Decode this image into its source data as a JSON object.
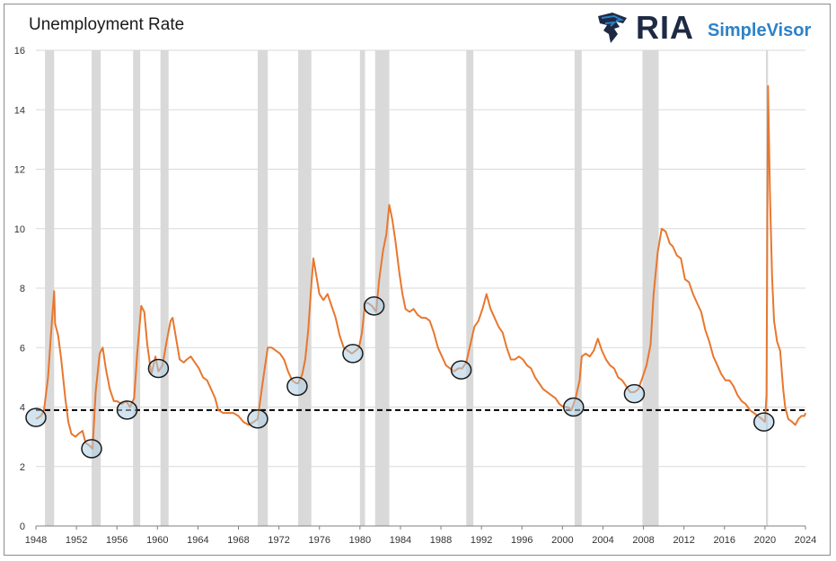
{
  "header": {
    "title": "Unemployment Rate"
  },
  "logo": {
    "mark": "RIA",
    "product": "SimpleVisor",
    "icon": "eagle-icon",
    "colors": {
      "mark": "#1e2a44",
      "product": "#2d82c8"
    }
  },
  "chart_data": {
    "type": "line",
    "title": "Unemployment Rate",
    "xlabel": "",
    "ylabel": "",
    "xlim": [
      1948,
      2024
    ],
    "ylim": [
      0,
      16
    ],
    "yticks": [
      0,
      2,
      4,
      6,
      8,
      10,
      12,
      14,
      16
    ],
    "xticks": [
      "1948",
      "1952",
      "1956",
      "1960",
      "1964",
      "1968",
      "1972",
      "1976",
      "1980",
      "1984",
      "1988",
      "1992",
      "1996",
      "2000",
      "2004",
      "2008",
      "2012",
      "2016",
      "2020",
      "2024"
    ],
    "grid": "horizontal",
    "line_color": "#e8772e",
    "recession_color": "#d9d9d9",
    "reference_line": {
      "y": 3.9,
      "style": "dashed",
      "color": "#000000"
    },
    "recessions": [
      [
        1948.9,
        1949.8
      ],
      [
        1953.5,
        1954.4
      ],
      [
        1957.6,
        1958.3
      ],
      [
        1960.3,
        1961.1
      ],
      [
        1969.9,
        1970.9
      ],
      [
        1973.9,
        1975.2
      ],
      [
        1980.0,
        1980.5
      ],
      [
        1981.5,
        1982.9
      ],
      [
        1990.5,
        1991.2
      ],
      [
        2001.2,
        2001.9
      ],
      [
        2007.9,
        2009.5
      ],
      [
        2020.1,
        2020.3
      ]
    ],
    "series": [
      {
        "values": [
          [
            1948.0,
            3.6
          ],
          [
            1948.5,
            3.7
          ],
          [
            1948.8,
            3.9
          ],
          [
            1949.2,
            5.0
          ],
          [
            1949.5,
            6.5
          ],
          [
            1949.8,
            7.9
          ],
          [
            1949.9,
            6.8
          ],
          [
            1950.2,
            6.4
          ],
          [
            1950.5,
            5.6
          ],
          [
            1950.9,
            4.3
          ],
          [
            1951.2,
            3.5
          ],
          [
            1951.5,
            3.1
          ],
          [
            1951.9,
            3.0
          ],
          [
            1952.2,
            3.1
          ],
          [
            1952.6,
            3.2
          ],
          [
            1952.9,
            2.8
          ],
          [
            1953.3,
            2.7
          ],
          [
            1953.6,
            2.6
          ],
          [
            1953.9,
            4.5
          ],
          [
            1954.3,
            5.8
          ],
          [
            1954.6,
            6.0
          ],
          [
            1954.9,
            5.3
          ],
          [
            1955.3,
            4.6
          ],
          [
            1955.7,
            4.2
          ],
          [
            1956.0,
            4.2
          ],
          [
            1956.5,
            4.1
          ],
          [
            1956.9,
            4.2
          ],
          [
            1957.3,
            4.0
          ],
          [
            1957.7,
            4.3
          ],
          [
            1958.0,
            5.8
          ],
          [
            1958.4,
            7.4
          ],
          [
            1958.7,
            7.2
          ],
          [
            1959.0,
            6.1
          ],
          [
            1959.4,
            5.1
          ],
          [
            1959.8,
            5.7
          ],
          [
            1960.1,
            5.2
          ],
          [
            1960.5,
            5.4
          ],
          [
            1960.9,
            6.2
          ],
          [
            1961.3,
            6.9
          ],
          [
            1961.5,
            7.0
          ],
          [
            1961.9,
            6.2
          ],
          [
            1962.2,
            5.6
          ],
          [
            1962.6,
            5.5
          ],
          [
            1962.9,
            5.6
          ],
          [
            1963.3,
            5.7
          ],
          [
            1963.7,
            5.5
          ],
          [
            1964.1,
            5.3
          ],
          [
            1964.5,
            5.0
          ],
          [
            1964.9,
            4.9
          ],
          [
            1965.3,
            4.6
          ],
          [
            1965.7,
            4.3
          ],
          [
            1966.0,
            3.9
          ],
          [
            1966.5,
            3.8
          ],
          [
            1967.0,
            3.8
          ],
          [
            1967.5,
            3.8
          ],
          [
            1968.0,
            3.7
          ],
          [
            1968.5,
            3.5
          ],
          [
            1969.0,
            3.4
          ],
          [
            1969.5,
            3.5
          ],
          [
            1969.9,
            3.6
          ],
          [
            1970.3,
            4.6
          ],
          [
            1970.6,
            5.3
          ],
          [
            1970.9,
            6.0
          ],
          [
            1971.3,
            6.0
          ],
          [
            1971.7,
            5.9
          ],
          [
            1972.1,
            5.8
          ],
          [
            1972.5,
            5.6
          ],
          [
            1972.9,
            5.2
          ],
          [
            1973.3,
            4.9
          ],
          [
            1973.7,
            4.8
          ],
          [
            1973.9,
            4.8
          ],
          [
            1974.3,
            5.1
          ],
          [
            1974.6,
            5.6
          ],
          [
            1974.9,
            6.6
          ],
          [
            1975.2,
            8.1
          ],
          [
            1975.4,
            9.0
          ],
          [
            1975.7,
            8.4
          ],
          [
            1976.0,
            7.8
          ],
          [
            1976.4,
            7.6
          ],
          [
            1976.8,
            7.8
          ],
          [
            1977.2,
            7.4
          ],
          [
            1977.6,
            7.0
          ],
          [
            1978.0,
            6.4
          ],
          [
            1978.4,
            6.0
          ],
          [
            1978.8,
            5.9
          ],
          [
            1979.2,
            5.8
          ],
          [
            1979.6,
            5.9
          ],
          [
            1979.9,
            6.0
          ],
          [
            1980.2,
            6.5
          ],
          [
            1980.5,
            7.5
          ],
          [
            1980.8,
            7.5
          ],
          [
            1981.2,
            7.4
          ],
          [
            1981.6,
            7.2
          ],
          [
            1981.9,
            8.3
          ],
          [
            1982.3,
            9.3
          ],
          [
            1982.6,
            9.8
          ],
          [
            1982.9,
            10.8
          ],
          [
            1983.2,
            10.3
          ],
          [
            1983.5,
            9.6
          ],
          [
            1983.9,
            8.5
          ],
          [
            1984.2,
            7.8
          ],
          [
            1984.5,
            7.3
          ],
          [
            1984.9,
            7.2
          ],
          [
            1985.3,
            7.3
          ],
          [
            1985.7,
            7.1
          ],
          [
            1986.1,
            7.0
          ],
          [
            1986.5,
            7.0
          ],
          [
            1986.9,
            6.9
          ],
          [
            1987.3,
            6.5
          ],
          [
            1987.7,
            6.0
          ],
          [
            1988.1,
            5.7
          ],
          [
            1988.5,
            5.4
          ],
          [
            1988.9,
            5.3
          ],
          [
            1989.3,
            5.2
          ],
          [
            1989.7,
            5.3
          ],
          [
            1990.1,
            5.3
          ],
          [
            1990.5,
            5.5
          ],
          [
            1990.9,
            6.1
          ],
          [
            1991.3,
            6.7
          ],
          [
            1991.7,
            6.9
          ],
          [
            1992.1,
            7.3
          ],
          [
            1992.5,
            7.8
          ],
          [
            1992.9,
            7.3
          ],
          [
            1993.3,
            7.0
          ],
          [
            1993.7,
            6.7
          ],
          [
            1994.1,
            6.5
          ],
          [
            1994.5,
            6.0
          ],
          [
            1994.9,
            5.6
          ],
          [
            1995.3,
            5.6
          ],
          [
            1995.7,
            5.7
          ],
          [
            1996.1,
            5.6
          ],
          [
            1996.5,
            5.4
          ],
          [
            1996.9,
            5.3
          ],
          [
            1997.3,
            5.0
          ],
          [
            1997.7,
            4.8
          ],
          [
            1998.1,
            4.6
          ],
          [
            1998.5,
            4.5
          ],
          [
            1998.9,
            4.4
          ],
          [
            1999.3,
            4.3
          ],
          [
            1999.7,
            4.1
          ],
          [
            2000.1,
            4.0
          ],
          [
            2000.5,
            4.0
          ],
          [
            2000.9,
            3.9
          ],
          [
            2001.3,
            4.3
          ],
          [
            2001.7,
            4.9
          ],
          [
            2001.9,
            5.7
          ],
          [
            2002.3,
            5.8
          ],
          [
            2002.7,
            5.7
          ],
          [
            2003.1,
            5.9
          ],
          [
            2003.5,
            6.3
          ],
          [
            2003.9,
            5.9
          ],
          [
            2004.3,
            5.6
          ],
          [
            2004.7,
            5.4
          ],
          [
            2005.1,
            5.3
          ],
          [
            2005.5,
            5.0
          ],
          [
            2005.9,
            4.9
          ],
          [
            2006.3,
            4.7
          ],
          [
            2006.7,
            4.5
          ],
          [
            2007.1,
            4.5
          ],
          [
            2007.5,
            4.6
          ],
          [
            2007.9,
            5.0
          ],
          [
            2008.3,
            5.4
          ],
          [
            2008.7,
            6.1
          ],
          [
            2009.0,
            7.8
          ],
          [
            2009.4,
            9.2
          ],
          [
            2009.8,
            10.0
          ],
          [
            2010.2,
            9.9
          ],
          [
            2010.6,
            9.5
          ],
          [
            2010.9,
            9.4
          ],
          [
            2011.3,
            9.1
          ],
          [
            2011.7,
            9.0
          ],
          [
            2012.1,
            8.3
          ],
          [
            2012.5,
            8.2
          ],
          [
            2012.9,
            7.8
          ],
          [
            2013.3,
            7.5
          ],
          [
            2013.7,
            7.2
          ],
          [
            2014.1,
            6.6
          ],
          [
            2014.5,
            6.2
          ],
          [
            2014.9,
            5.7
          ],
          [
            2015.3,
            5.4
          ],
          [
            2015.7,
            5.1
          ],
          [
            2016.1,
            4.9
          ],
          [
            2016.5,
            4.9
          ],
          [
            2016.9,
            4.7
          ],
          [
            2017.3,
            4.4
          ],
          [
            2017.7,
            4.2
          ],
          [
            2018.1,
            4.1
          ],
          [
            2018.5,
            3.9
          ],
          [
            2018.9,
            3.8
          ],
          [
            2019.3,
            3.7
          ],
          [
            2019.7,
            3.6
          ],
          [
            2020.0,
            3.5
          ],
          [
            2020.15,
            4.4
          ],
          [
            2020.3,
            14.8
          ],
          [
            2020.5,
            11.1
          ],
          [
            2020.7,
            8.4
          ],
          [
            2020.9,
            6.9
          ],
          [
            2021.2,
            6.2
          ],
          [
            2021.5,
            5.9
          ],
          [
            2021.8,
            4.6
          ],
          [
            2022.0,
            4.0
          ],
          [
            2022.3,
            3.6
          ],
          [
            2022.7,
            3.5
          ],
          [
            2023.0,
            3.4
          ],
          [
            2023.3,
            3.6
          ],
          [
            2023.6,
            3.7
          ],
          [
            2023.9,
            3.7
          ],
          [
            2024.0,
            3.8
          ]
        ]
      }
    ],
    "circled_points": [
      [
        1948.0,
        3.65
      ],
      [
        1953.5,
        2.6
      ],
      [
        1957.0,
        3.9
      ],
      [
        1960.1,
        5.3
      ],
      [
        1969.9,
        3.6
      ],
      [
        1973.8,
        4.7
      ],
      [
        1979.3,
        5.8
      ],
      [
        1981.4,
        7.4
      ],
      [
        1990.0,
        5.25
      ],
      [
        2001.1,
        4.0
      ],
      [
        2007.1,
        4.45
      ],
      [
        2019.9,
        3.5
      ]
    ]
  }
}
